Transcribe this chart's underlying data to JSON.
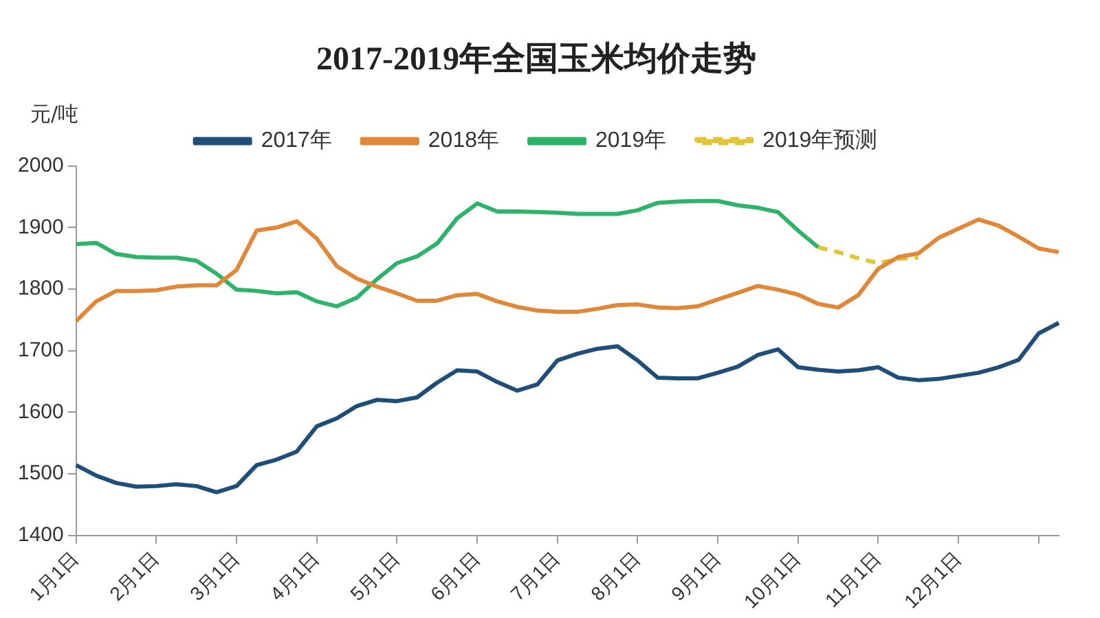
{
  "chart_data": {
    "type": "line",
    "title": "2017-2019年全国玉米均价走势",
    "ylabel": "元/吨",
    "categories": [
      "1月1日",
      null,
      null,
      null,
      "2月1日",
      null,
      null,
      null,
      "3月1日",
      null,
      null,
      null,
      "4月1日",
      null,
      null,
      null,
      "5月1日",
      null,
      null,
      null,
      "6月1日",
      null,
      null,
      null,
      "7月1日",
      null,
      null,
      null,
      "8月1日",
      null,
      null,
      null,
      "9月1日",
      null,
      null,
      null,
      "10月1日",
      null,
      null,
      null,
      "11月1日",
      null,
      null,
      null,
      "12月1日",
      null,
      null,
      null,
      null,
      null
    ],
    "ylim": [
      1400,
      2000
    ],
    "yticks": [
      1400,
      1500,
      1600,
      1700,
      1800,
      1900,
      2000
    ],
    "grid": false,
    "legend": "top",
    "marker": "none",
    "series": [
      {
        "name": "2017年",
        "color": "#1f4e79",
        "line_style": "solid",
        "values": [
          1514,
          1497,
          1485,
          1479,
          1480,
          1483,
          1480,
          1470,
          1480,
          1514,
          1523,
          1536,
          1577,
          1590,
          1610,
          1620,
          1618,
          1624,
          1648,
          1668,
          1666,
          1649,
          1635,
          1645,
          1684,
          1695,
          1703,
          1707,
          1684,
          1656,
          1655,
          1655,
          1664,
          1674,
          1693,
          1702,
          1673,
          1669,
          1666,
          1668,
          1673,
          1656,
          1652,
          1654,
          1659,
          1664,
          1673,
          1685,
          1728,
          1745
        ]
      },
      {
        "name": "2018年",
        "color": "#e0883a",
        "line_style": "solid",
        "values": [
          1748,
          1780,
          1797,
          1797,
          1798,
          1804,
          1806,
          1806,
          1831,
          1895,
          1900,
          1910,
          1882,
          1837,
          1817,
          1804,
          1793,
          1781,
          1781,
          1790,
          1792,
          1780,
          1771,
          1765,
          1763,
          1763,
          1768,
          1774,
          1775,
          1770,
          1769,
          1772,
          1783,
          1794,
          1805,
          1799,
          1791,
          1776,
          1770,
          1790,
          1833,
          1852,
          1858,
          1883,
          1898,
          1913,
          1903,
          1885,
          1866,
          1860
        ]
      },
      {
        "name": "2019年",
        "color": "#2fb36b",
        "line_style": "solid",
        "values": [
          1873,
          1875,
          1857,
          1852,
          1851,
          1851,
          1846,
          1825,
          1799,
          1797,
          1793,
          1795,
          1780,
          1772,
          1786,
          1816,
          1842,
          1853,
          1874,
          1915,
          1939,
          1926,
          1926,
          1925,
          1924,
          1922,
          1922,
          1922,
          1928,
          1940,
          1942,
          1943,
          1943,
          1936,
          1932,
          1925,
          1895,
          1868,
          null,
          null,
          null,
          null,
          null,
          null,
          null,
          null,
          null,
          null,
          null,
          null
        ]
      },
      {
        "name": "2019年预测",
        "color": "#e3c53a",
        "line_style": "dashed",
        "values": [
          null,
          null,
          null,
          null,
          null,
          null,
          null,
          null,
          null,
          null,
          null,
          null,
          null,
          null,
          null,
          null,
          null,
          null,
          null,
          null,
          null,
          null,
          null,
          null,
          null,
          null,
          null,
          null,
          null,
          null,
          null,
          null,
          null,
          null,
          null,
          null,
          null,
          1868,
          1860,
          1850,
          1842,
          1849,
          1851,
          null,
          null,
          null,
          null,
          null,
          null,
          null
        ]
      }
    ]
  }
}
